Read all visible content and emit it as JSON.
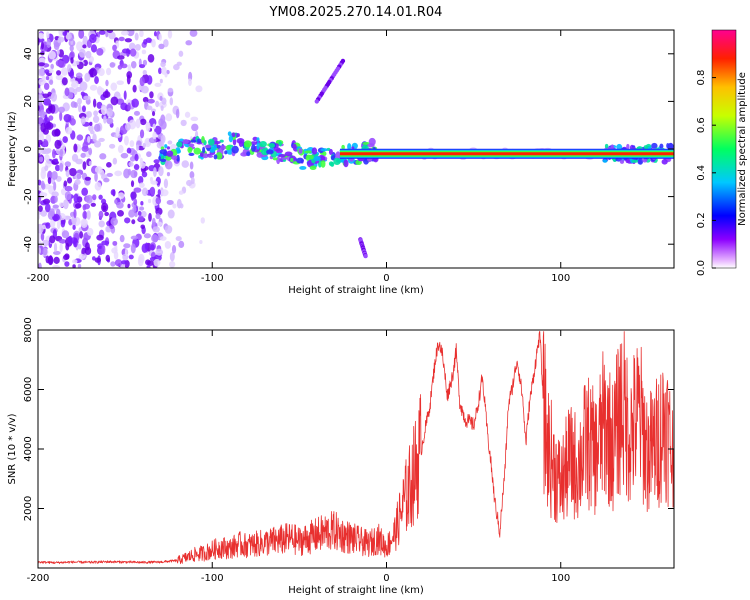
{
  "title": "YM08.2025.270.14.01.R04",
  "chart_data": [
    {
      "type": "heatmap",
      "xlabel": "Height of straight line (km)",
      "ylabel": "Frequency (Hz)",
      "xlim": [
        -200,
        165
      ],
      "ylim": [
        -50,
        50
      ],
      "xticks": [
        -200,
        -100,
        0,
        100
      ],
      "yticks": [
        -40,
        -20,
        0,
        20,
        40
      ],
      "colorbar": {
        "label": "Normalized spectral amplitude",
        "range": [
          0,
          1
        ],
        "ticks": [
          "0.0",
          "0.2",
          "0.4",
          "0.6",
          "0.8"
        ]
      },
      "features": [
        {
          "name": "main line",
          "x": [
            -130,
            165
          ],
          "y": [
            -2,
            -2
          ]
        },
        {
          "name": "upper arm",
          "x": [
            -25,
            -40
          ],
          "y": [
            37,
            20
          ]
        },
        {
          "name": "lower arm",
          "x": [
            -15,
            -12
          ],
          "y": [
            -38,
            -45
          ]
        }
      ]
    },
    {
      "type": "line",
      "xlabel": "Height of straight line (km)",
      "ylabel": "SNR (10 * v/v)",
      "xlim": [
        -200,
        165
      ],
      "ylim": [
        0,
        8000
      ],
      "xticks": [
        -200,
        -100,
        0,
        100
      ],
      "yticks": [
        2000,
        4000,
        6000,
        8000
      ],
      "color": "#e8302f",
      "series": [
        {
          "x": [
            -200,
            -190,
            -180,
            -170,
            -160,
            -150,
            -140,
            -130,
            -120,
            -115,
            -110,
            -105,
            -100,
            -95,
            -90,
            -85,
            -80,
            -75,
            -70,
            -65,
            -60,
            -55,
            -50,
            -45,
            -40,
            -35,
            -30,
            -25,
            -20,
            -15,
            -10,
            -5,
            0,
            5,
            10,
            15,
            20,
            25,
            28,
            30,
            32,
            35,
            38,
            40,
            42,
            45,
            48,
            50,
            52,
            55,
            58,
            60,
            62,
            65,
            68,
            70,
            72,
            75,
            78,
            80,
            82,
            85,
            88,
            90,
            92,
            95,
            98,
            100,
            105,
            110,
            115,
            120,
            125,
            130,
            135,
            140,
            145,
            150,
            155,
            160,
            165
          ],
          "y": [
            200,
            180,
            200,
            190,
            210,
            200,
            190,
            200,
            250,
            350,
            450,
            500,
            600,
            700,
            650,
            800,
            750,
            800,
            850,
            900,
            950,
            1000,
            900,
            1000,
            1100,
            1200,
            1250,
            1100,
            1000,
            900,
            800,
            1000,
            700,
            1200,
            2200,
            3000,
            4000,
            5500,
            7000,
            7600,
            7200,
            5800,
            6500,
            7300,
            5600,
            5000,
            4900,
            4800,
            5300,
            6400,
            4500,
            3500,
            2300,
            1200,
            3300,
            5500,
            6000,
            7000,
            5800,
            4200,
            5500,
            6700,
            7900,
            5600,
            4200,
            3600,
            3100,
            2800,
            3600,
            3400,
            4300,
            3800,
            4900,
            4100,
            5500,
            4500,
            5200,
            3800,
            4200,
            5000,
            3500
          ]
        }
      ]
    }
  ]
}
